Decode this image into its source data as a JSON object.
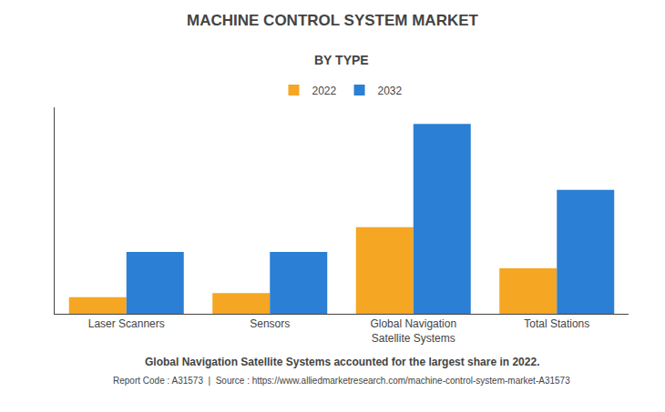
{
  "chart_data": {
    "type": "bar",
    "title": "MACHINE CONTROL SYSTEM MARKET",
    "subtitle": "BY TYPE",
    "annotations": [
      "Global Navigation Satellite Systems accounted for the largest share in 2022.",
      "Report Code : A31573  |  Source : https://www.alliedmarketresearch.com/machine-control-system-market-A31573"
    ],
    "categories": [
      "Laser Scanners",
      "Sensors",
      "Global Navigation\nSatellite Systems",
      "Total Stations"
    ],
    "series": [
      {
        "name": "2022",
        "color": "#F5A623",
        "values": [
          0.08,
          0.1,
          0.42,
          0.22
        ]
      },
      {
        "name": "2032",
        "color": "#2B7FD4",
        "values": [
          0.3,
          0.3,
          0.92,
          0.6
        ]
      }
    ],
    "ylim": [
      0,
      1.0
    ],
    "grid": false,
    "legend": "top",
    "tick_labels": "x"
  }
}
